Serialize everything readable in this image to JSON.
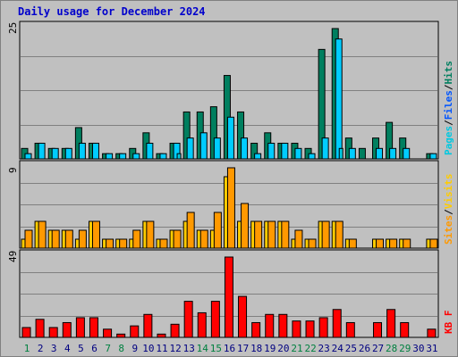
{
  "title": "Daily usage for December 2024",
  "colors": {
    "hits": "#007f5f",
    "files": "#00ccff",
    "pages": "#00c8e0",
    "visits": "#ffcc00",
    "sites": "#ff9900",
    "kbytes": "#ff0000",
    "weekday_label": "#000080",
    "weekend_label": "#008040"
  },
  "chart_data": [
    {
      "type": "bar",
      "panel": "hits-files-pages",
      "max_label": "25",
      "series_labels": [
        "Pages",
        "/",
        "Files",
        "/",
        "Hits"
      ],
      "categories": [
        "1",
        "2",
        "3",
        "4",
        "5",
        "6",
        "7",
        "8",
        "9",
        "10",
        "11",
        "12",
        "13",
        "14",
        "15",
        "16",
        "17",
        "18",
        "19",
        "20",
        "21",
        "22",
        "23",
        "24",
        "25",
        "26",
        "27",
        "28",
        "29",
        "30",
        "31"
      ],
      "weekend_days": [
        1,
        7,
        8,
        14,
        15,
        21,
        22,
        28,
        29
      ],
      "ylim": [
        0,
        25
      ],
      "series": [
        {
          "name": "Hits",
          "values": [
            2,
            3,
            2,
            2,
            6,
            3,
            1,
            1,
            2,
            5,
            1,
            3,
            9,
            9,
            10,
            16,
            9,
            3,
            5,
            3,
            3,
            2,
            21,
            25,
            4,
            2,
            4,
            7,
            4,
            0,
            1
          ]
        },
        {
          "name": "Files",
          "values": [
            1,
            3,
            2,
            2,
            3,
            3,
            1,
            1,
            1,
            3,
            1,
            3,
            4,
            5,
            4,
            8,
            4,
            1,
            3,
            3,
            2,
            1,
            4,
            23,
            2,
            0,
            2,
            2,
            2,
            0,
            1
          ]
        },
        {
          "name": "Pages",
          "values": [
            0,
            0,
            0,
            0,
            0,
            0,
            0,
            0,
            0,
            0,
            0,
            1,
            0,
            0,
            0,
            0,
            0,
            0,
            0,
            0,
            0,
            0,
            0,
            2,
            0,
            0,
            0,
            0,
            0,
            0,
            0
          ]
        }
      ]
    },
    {
      "type": "bar",
      "panel": "visits-sites",
      "max_label": "9",
      "series_labels": [
        "Sites",
        "/",
        "Visits"
      ],
      "ylim": [
        0,
        9
      ],
      "series": [
        {
          "name": "Visits",
          "values": [
            1,
            3,
            2,
            2,
            1,
            3,
            1,
            1,
            1,
            3,
            1,
            2,
            3,
            2,
            2,
            8,
            3,
            3,
            3,
            3,
            1,
            1,
            3,
            3,
            1,
            0,
            1,
            1,
            1,
            0,
            1
          ]
        },
        {
          "name": "Sites",
          "values": [
            2,
            3,
            2,
            2,
            2,
            3,
            1,
            1,
            2,
            3,
            1,
            2,
            4,
            2,
            4,
            9,
            5,
            3,
            3,
            3,
            2,
            1,
            3,
            3,
            1,
            0,
            1,
            1,
            1,
            0,
            1
          ]
        }
      ]
    },
    {
      "type": "bar",
      "panel": "kbytes",
      "max_label": "49",
      "series_labels": [
        "KB",
        "F"
      ],
      "ylim": [
        0,
        49
      ],
      "series": [
        {
          "name": "KB F",
          "values": [
            6,
            11,
            6,
            9,
            12,
            12,
            5,
            2,
            7,
            14,
            2,
            8,
            22,
            15,
            22,
            49,
            25,
            9,
            14,
            14,
            10,
            10,
            12,
            17,
            9,
            0,
            9,
            17,
            9,
            0,
            5
          ]
        }
      ]
    }
  ]
}
